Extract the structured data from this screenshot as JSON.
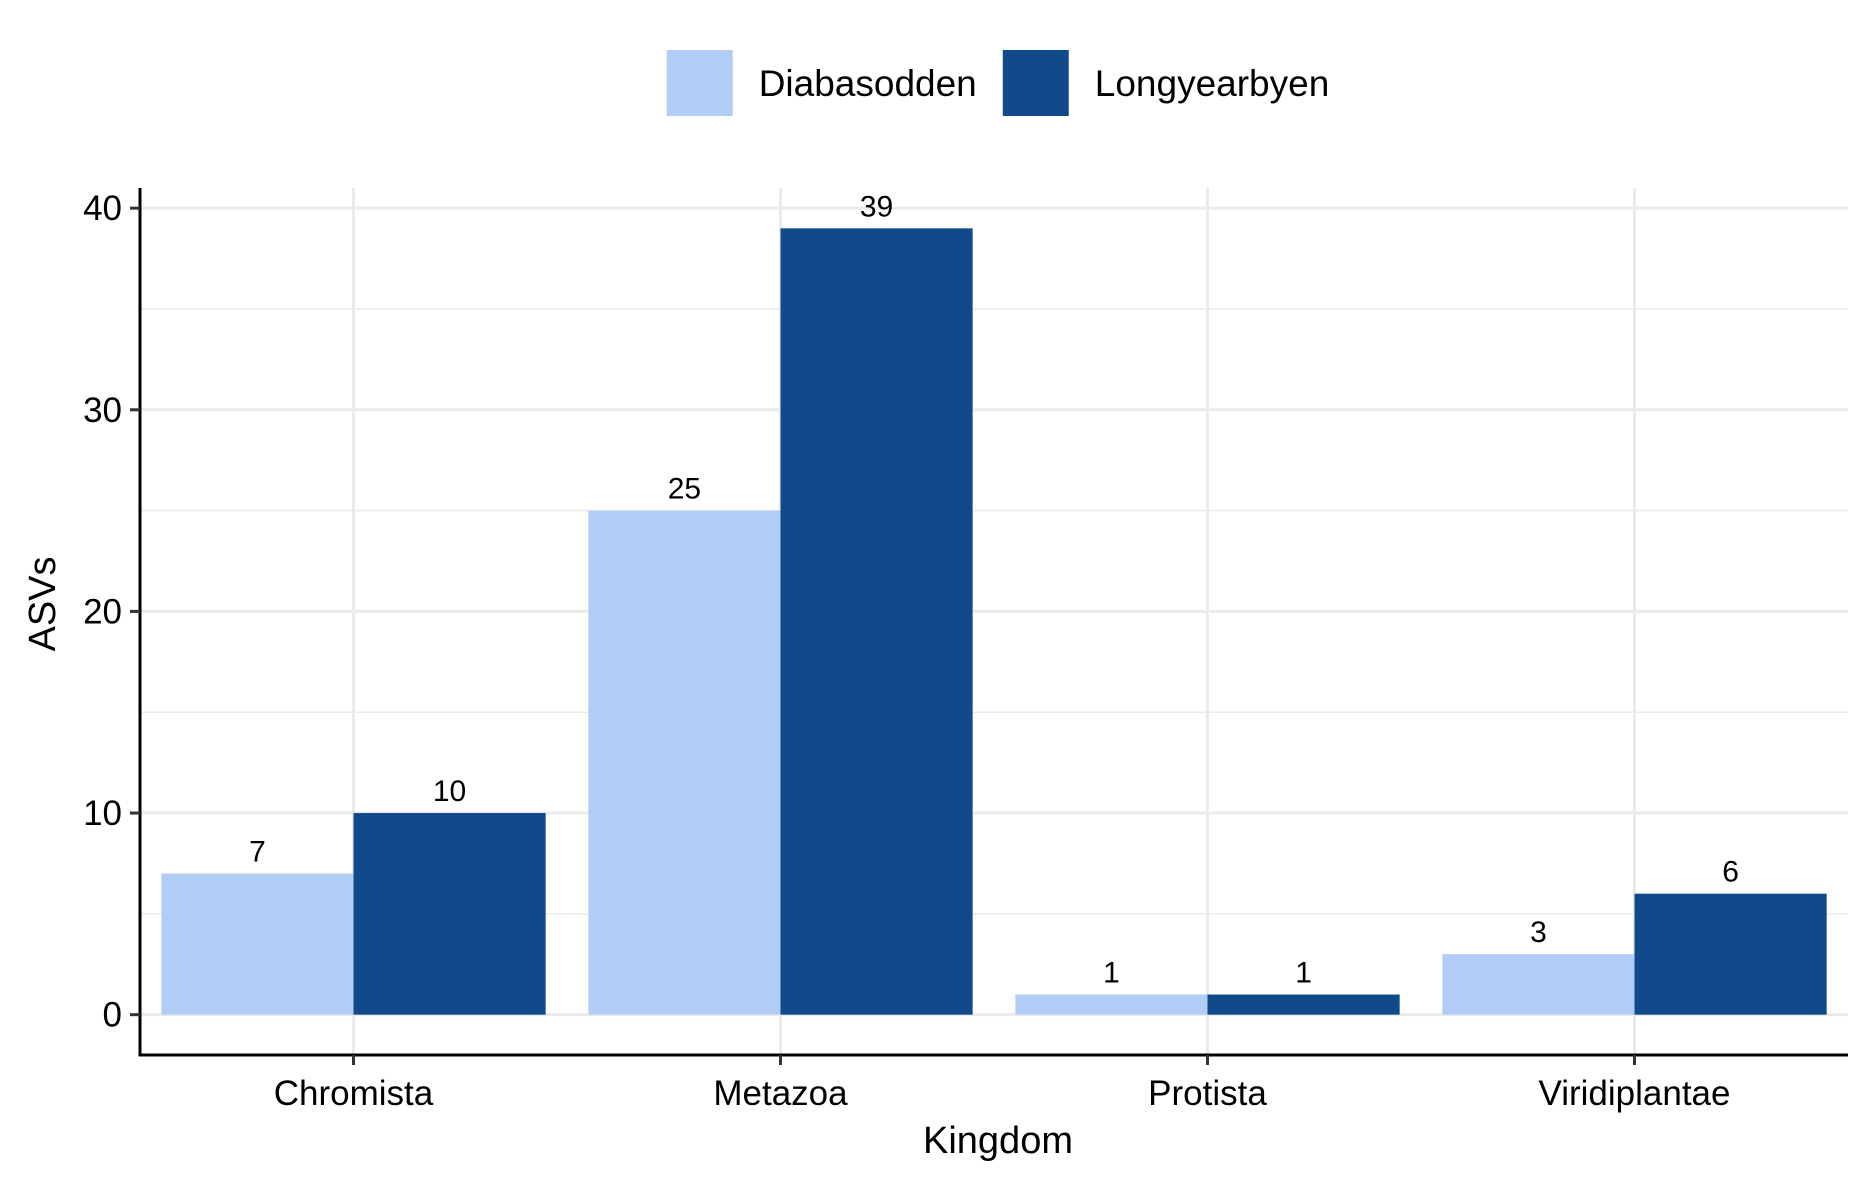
{
  "chart_data": {
    "type": "bar",
    "title": "",
    "xlabel": "Kingdom",
    "ylabel": "ASVs",
    "categories": [
      "Chromista",
      "Metazoa",
      "Protista",
      "Viridiplantae"
    ],
    "series": [
      {
        "name": "Diabasodden",
        "values": [
          7,
          25,
          1,
          3
        ],
        "color": "#b1cdf6"
      },
      {
        "name": "Longyearbyen",
        "values": [
          10,
          39,
          1,
          6
        ],
        "color": "#114a8b"
      }
    ],
    "ylim": [
      -2,
      41
    ],
    "yticks": [
      0,
      10,
      20,
      30,
      40
    ],
    "grid": true,
    "legend_position": "top"
  }
}
